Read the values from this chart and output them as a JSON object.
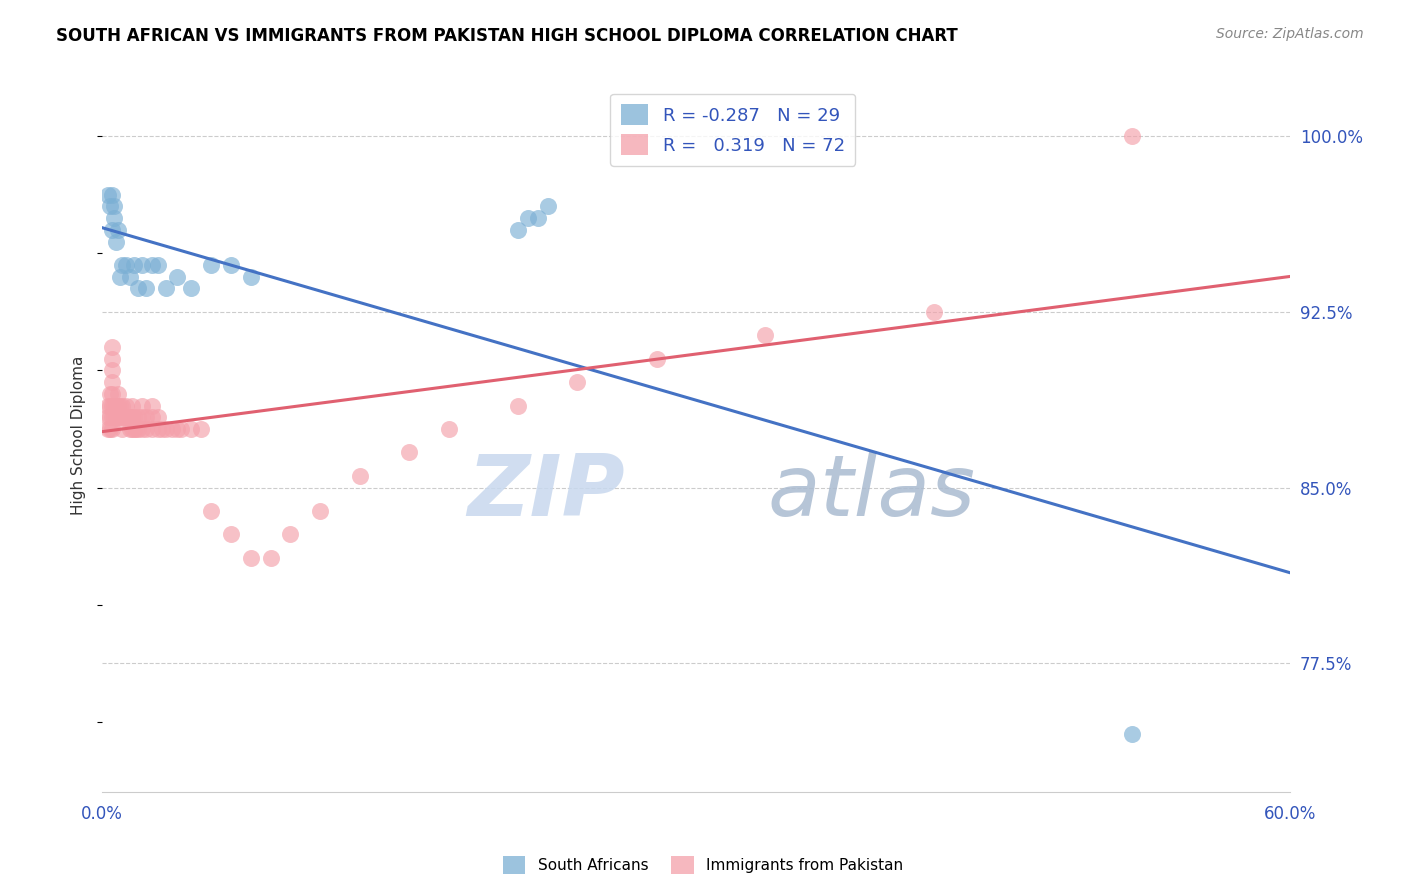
{
  "title": "SOUTH AFRICAN VS IMMIGRANTS FROM PAKISTAN HIGH SCHOOL DIPLOMA CORRELATION CHART",
  "source": "Source: ZipAtlas.com",
  "ylabel": "High School Diploma",
  "ytick_labels": [
    "100.0%",
    "92.5%",
    "85.0%",
    "77.5%"
  ],
  "ytick_values": [
    1.0,
    0.925,
    0.85,
    0.775
  ],
  "xlim": [
    0.0,
    0.6
  ],
  "ylim": [
    0.72,
    1.025
  ],
  "legend_blue_r": "-0.287",
  "legend_blue_n": "29",
  "legend_pink_r": "0.319",
  "legend_pink_n": "72",
  "blue_color": "#7BAFD4",
  "pink_color": "#F4A0AA",
  "blue_line_color": "#4472C4",
  "pink_line_color": "#E06070",
  "watermark_zip": "ZIP",
  "watermark_atlas": "atlas",
  "legend_label_blue": "South Africans",
  "legend_label_pink": "Immigrants from Pakistan",
  "blue_points_x": [
    0.003,
    0.004,
    0.005,
    0.005,
    0.006,
    0.006,
    0.007,
    0.008,
    0.009,
    0.01,
    0.012,
    0.014,
    0.016,
    0.018,
    0.02,
    0.022,
    0.025,
    0.028,
    0.032,
    0.038,
    0.045,
    0.055,
    0.065,
    0.075,
    0.21,
    0.215,
    0.22,
    0.225,
    0.52
  ],
  "blue_points_y": [
    0.975,
    0.97,
    0.96,
    0.975,
    0.965,
    0.97,
    0.955,
    0.96,
    0.94,
    0.945,
    0.945,
    0.94,
    0.945,
    0.935,
    0.945,
    0.935,
    0.945,
    0.945,
    0.935,
    0.94,
    0.935,
    0.945,
    0.945,
    0.94,
    0.96,
    0.965,
    0.965,
    0.97,
    0.745
  ],
  "pink_points_x": [
    0.003,
    0.003,
    0.003,
    0.004,
    0.004,
    0.004,
    0.004,
    0.005,
    0.005,
    0.005,
    0.005,
    0.005,
    0.005,
    0.005,
    0.005,
    0.006,
    0.006,
    0.007,
    0.007,
    0.008,
    0.008,
    0.008,
    0.009,
    0.009,
    0.01,
    0.01,
    0.01,
    0.012,
    0.012,
    0.013,
    0.014,
    0.014,
    0.015,
    0.015,
    0.015,
    0.016,
    0.016,
    0.017,
    0.018,
    0.018,
    0.02,
    0.02,
    0.02,
    0.022,
    0.022,
    0.025,
    0.025,
    0.025,
    0.028,
    0.028,
    0.03,
    0.032,
    0.035,
    0.038,
    0.04,
    0.045,
    0.05,
    0.055,
    0.065,
    0.075,
    0.085,
    0.095,
    0.11,
    0.13,
    0.155,
    0.175,
    0.21,
    0.24,
    0.28,
    0.335,
    0.42,
    0.52
  ],
  "pink_points_y": [
    0.875,
    0.88,
    0.885,
    0.875,
    0.88,
    0.885,
    0.89,
    0.875,
    0.88,
    0.885,
    0.89,
    0.895,
    0.9,
    0.905,
    0.91,
    0.88,
    0.885,
    0.88,
    0.885,
    0.88,
    0.885,
    0.89,
    0.88,
    0.885,
    0.875,
    0.88,
    0.885,
    0.88,
    0.885,
    0.88,
    0.875,
    0.88,
    0.875,
    0.88,
    0.885,
    0.875,
    0.88,
    0.875,
    0.875,
    0.88,
    0.875,
    0.88,
    0.885,
    0.875,
    0.88,
    0.875,
    0.88,
    0.885,
    0.875,
    0.88,
    0.875,
    0.875,
    0.875,
    0.875,
    0.875,
    0.875,
    0.875,
    0.84,
    0.83,
    0.82,
    0.82,
    0.83,
    0.84,
    0.855,
    0.865,
    0.875,
    0.885,
    0.895,
    0.905,
    0.915,
    0.925,
    1.0
  ]
}
